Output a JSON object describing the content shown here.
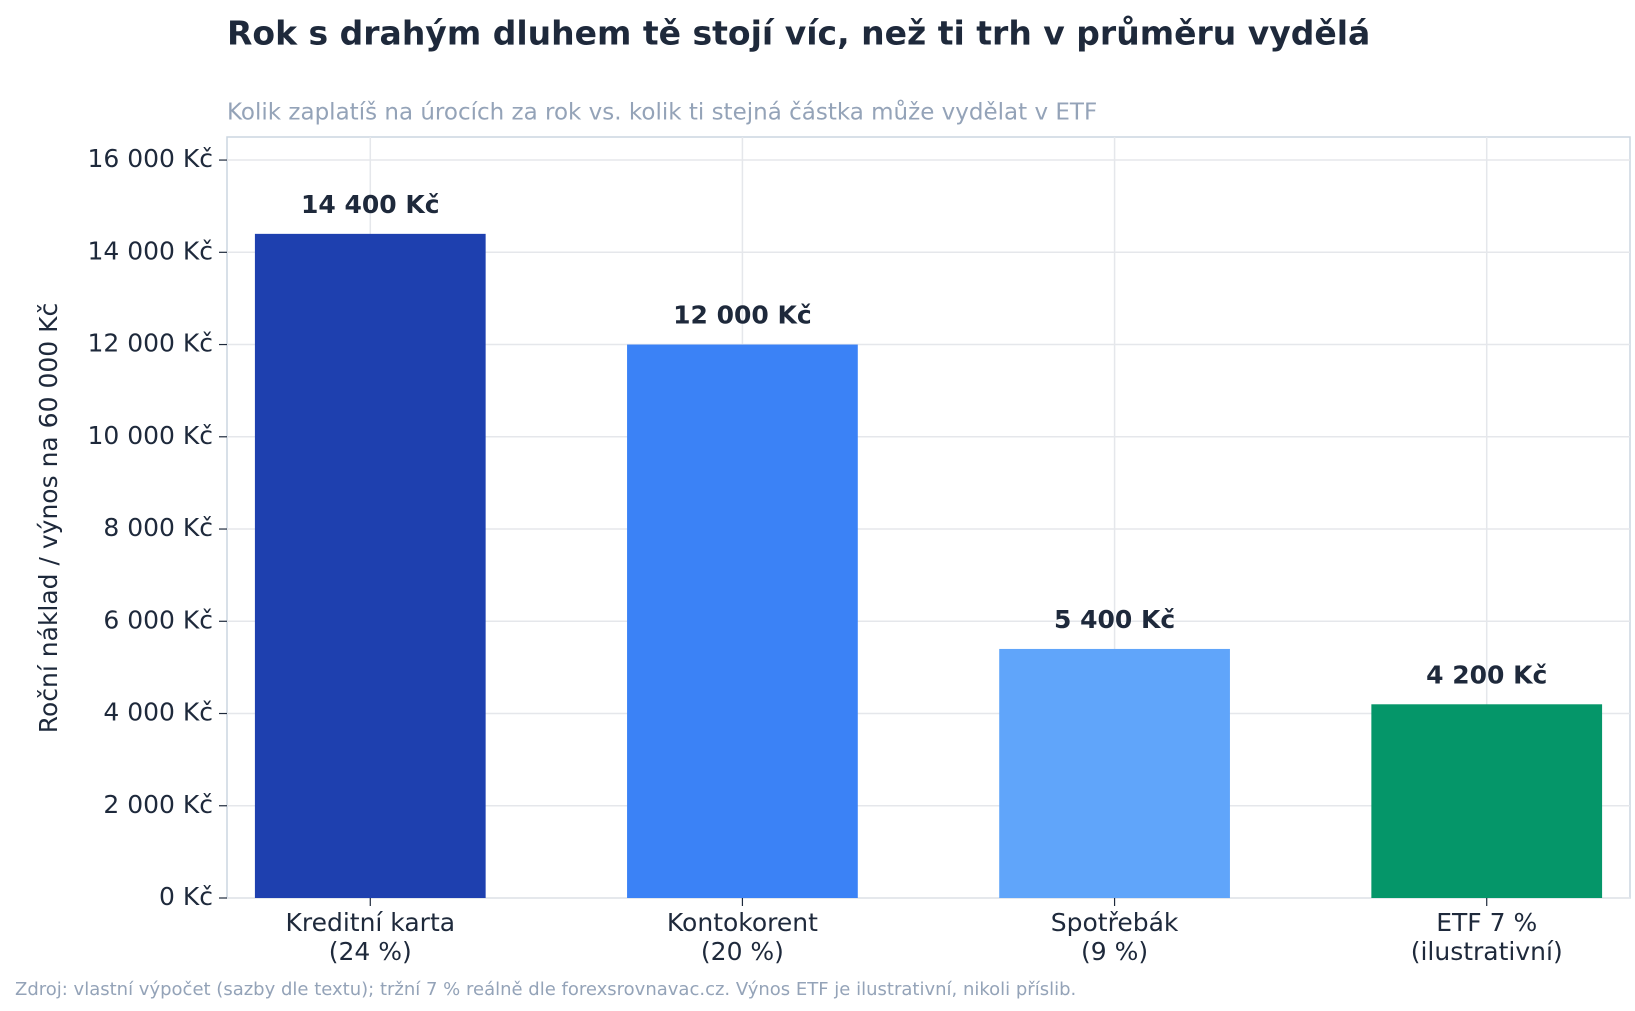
{
  "chart_data": {
    "type": "bar",
    "title": "Rok s drahým dluhem tě stojí víc, než ti trh v průměru vydělá",
    "subtitle": "Kolik zaplatíš na úrocích za rok vs. kolik ti stejná částka může vydělat v ETF",
    "y_label": "Roční náklad / výnos na 60 000 Kč",
    "source": "Zdroj: vlastní výpočet (sazby dle textu); tržní 7 % reálně dle forexsrovnavac.cz. Výnos ETF je ilustrativní, nikoli příslib.",
    "categories": [
      "Kreditní karta\n(24 %)",
      "Kontokorent\n(20 %)",
      "Spotřebák\n(9 %)",
      "ETF 7 %\n(ilustrativní)"
    ],
    "values": [
      14400,
      12000,
      5400,
      4200
    ],
    "value_labels": [
      "14 400 Kč",
      "12 000 Kč",
      "5 400 Kč",
      "4 200 Kč"
    ],
    "colors": [
      "#1e40af",
      "#3b82f6",
      "#60a5fa",
      "#059669"
    ],
    "ylim": [
      0,
      16500
    ],
    "yticks": [
      {
        "value": 0,
        "label": "0 Kč"
      },
      {
        "value": 2000,
        "label": "2 000 Kč"
      },
      {
        "value": 4000,
        "label": "4 000 Kč"
      },
      {
        "value": 6000,
        "label": "6 000 Kč"
      },
      {
        "value": 8000,
        "label": "8 000 Kč"
      },
      {
        "value": 10000,
        "label": "10 000 Kč"
      },
      {
        "value": 12000,
        "label": "12 000 Kč"
      },
      {
        "value": 14000,
        "label": "14 000 Kč"
      },
      {
        "value": 16000,
        "label": "16 000 Kč"
      }
    ],
    "grid": true
  }
}
